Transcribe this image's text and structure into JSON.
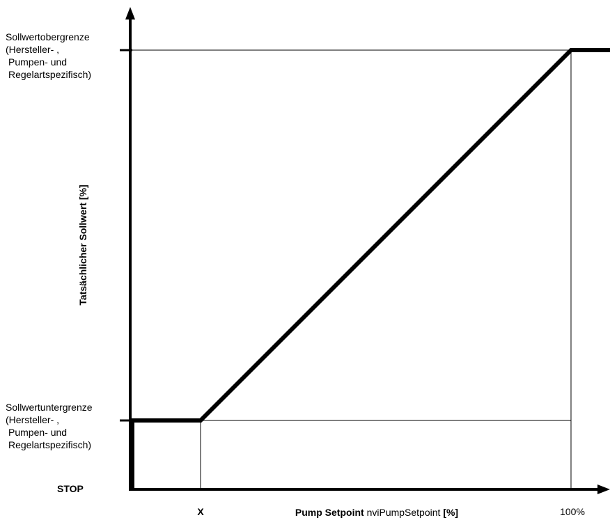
{
  "chart_data": {
    "type": "line",
    "title": "",
    "xlabel": {
      "bold_part": "Pump Setpoint",
      "normal_part": "nviPumpSetpoint",
      "unit": "[%]"
    },
    "ylabel": "Tatsächlicher Sollwert [%]",
    "x_tick_labels": [
      "X",
      "100%"
    ],
    "y_tick_labels": {
      "upper": [
        "Sollwertobergrenze",
        "(Hersteller- ,",
        "Pumpen- und",
        "Regelartspezifisch)"
      ],
      "lower": [
        "Sollwertuntergrenze",
        "(Hersteller- ,",
        "Pumpen- und",
        "Regelartspezifisch)"
      ],
      "stop": "STOP"
    },
    "series": [
      {
        "x": [
          "0",
          "0",
          "X",
          "100%",
          "max"
        ],
        "y": [
          "STOP",
          "Sollwertuntergrenze",
          "Sollwertuntergrenze",
          "Sollwertobergrenze",
          "Sollwertobergrenze"
        ]
      }
    ],
    "reference_lines": [
      {
        "from": [
          "X",
          "STOP"
        ],
        "to": [
          "X",
          "Sollwertuntergrenze"
        ]
      },
      {
        "from": [
          "0",
          "Sollwertuntergrenze"
        ],
        "to": [
          "100%",
          "Sollwertuntergrenze"
        ]
      },
      {
        "from": [
          "100%",
          "STOP"
        ],
        "to": [
          "100%",
          "Sollwertobergrenze"
        ]
      },
      {
        "from": [
          "0",
          "Sollwertobergrenze"
        ],
        "to": [
          "100%",
          "Sollwertobergrenze"
        ]
      }
    ],
    "grid": false,
    "legend": "none"
  }
}
